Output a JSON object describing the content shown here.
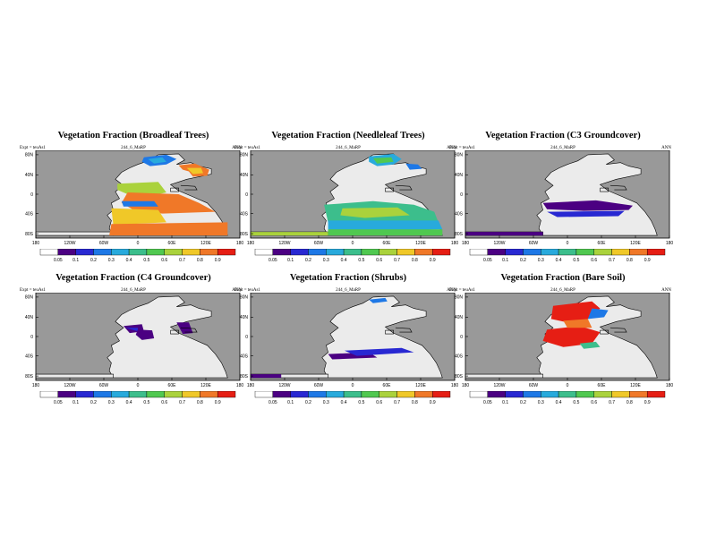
{
  "colors": {
    "ocean": "#999999",
    "land_empty": "#ebebeb",
    "colorbar": [
      "#ffffff",
      "#4b0082",
      "#2828d2",
      "#1e78e6",
      "#28aadc",
      "#3cbe8c",
      "#50c850",
      "#aad23c",
      "#f0c828",
      "#f07828",
      "#e61e14"
    ]
  },
  "panels": [
    {
      "title": "Vegetation Fraction (Broadleaf Trees)",
      "expt": "Expt = teuAs1",
      "case": "244_6_MaRP",
      "season": "ANN",
      "lat_labels": [
        "80N",
        "40N",
        "0",
        "40S",
        "80S"
      ],
      "lon_labels": [
        "180",
        "120W",
        "60W",
        "0",
        "60E",
        "120E",
        "180"
      ],
      "cbar_labels": [
        "0.05",
        "0.1",
        "0.2",
        "0.3",
        "0.4",
        "0.5",
        "0.6",
        "0.7",
        "0.8",
        "0.9"
      ]
    },
    {
      "title": "Vegetation Fraction (Needleleaf Trees)",
      "expt": "Expt = teuAs1",
      "case": "244_6_MaRP",
      "season": "ANN",
      "lat_labels": [
        "80N",
        "40N",
        "0",
        "40S",
        "80S"
      ],
      "lon_labels": [
        "180",
        "120W",
        "60W",
        "0",
        "60E",
        "120E",
        "180"
      ],
      "cbar_labels": [
        "0.05",
        "0.1",
        "0.2",
        "0.3",
        "0.4",
        "0.5",
        "0.6",
        "0.7",
        "0.8",
        "0.9"
      ]
    },
    {
      "title": "Vegetation Fraction (C3 Groundcover)",
      "expt": "Expt = teuAs1",
      "case": "244_6_MaRP",
      "season": "ANN",
      "lat_labels": [
        "80N",
        "40N",
        "0",
        "40S",
        "80S"
      ],
      "lon_labels": [
        "180",
        "120W",
        "60W",
        "0",
        "60E",
        "120E",
        "180"
      ],
      "cbar_labels": [
        "0.05",
        "0.1",
        "0.2",
        "0.3",
        "0.4",
        "0.5",
        "0.6",
        "0.7",
        "0.8",
        "0.9"
      ]
    },
    {
      "title": "Vegetation Fraction (C4 Groundcover)",
      "expt": "Expt = teuAs1",
      "case": "244_6_MaRP",
      "season": "ANN",
      "lat_labels": [
        "80N",
        "40N",
        "0",
        "40S",
        "80S"
      ],
      "lon_labels": [
        "180",
        "120W",
        "60W",
        "0",
        "60E",
        "120E",
        "180"
      ],
      "cbar_labels": [
        "0.05",
        "0.1",
        "0.2",
        "0.3",
        "0.4",
        "0.5",
        "0.6",
        "0.7",
        "0.8",
        "0.9"
      ]
    },
    {
      "title": "Vegetation Fraction (Shrubs)",
      "expt": "Expt = teuAs1",
      "case": "244_6_MaRP",
      "season": "ANN",
      "lat_labels": [
        "80N",
        "40N",
        "0",
        "40S",
        "80S"
      ],
      "lon_labels": [
        "180",
        "120W",
        "60W",
        "0",
        "60E",
        "120E",
        "180"
      ],
      "cbar_labels": [
        "0.05",
        "0.1",
        "0.2",
        "0.3",
        "0.4",
        "0.5",
        "0.6",
        "0.7",
        "0.8",
        "0.9"
      ]
    },
    {
      "title": "Vegetation Fraction (Bare Soil)",
      "expt": "Expt = teuAs1",
      "case": "244_6_MaRP",
      "season": "ANN",
      "lat_labels": [
        "80N",
        "40N",
        "0",
        "40S",
        "80S"
      ],
      "lon_labels": [
        "180",
        "120W",
        "60W",
        "0",
        "60E",
        "120E",
        "180"
      ],
      "cbar_labels": [
        "0.05",
        "0.1",
        "0.2",
        "0.3",
        "0.4",
        "0.5",
        "0.6",
        "0.7",
        "0.8",
        "0.9"
      ]
    }
  ]
}
